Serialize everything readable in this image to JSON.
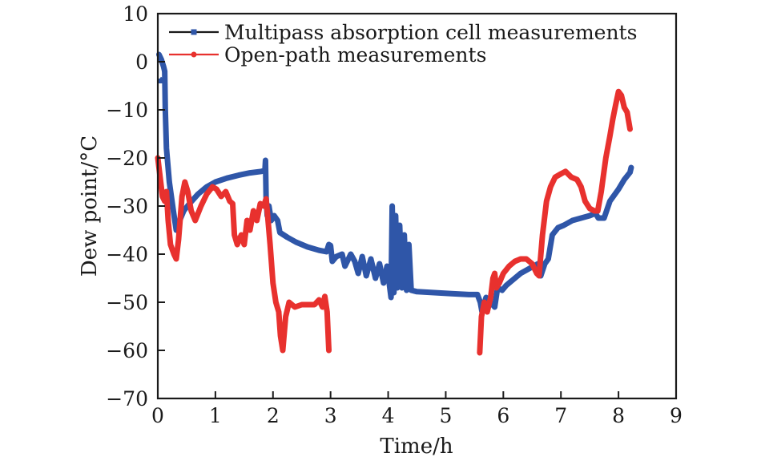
{
  "chart_data": {
    "type": "line",
    "title": "",
    "xlabel": "Time/h",
    "ylabel": "Dew point/°C",
    "xlim": [
      0,
      9
    ],
    "ylim": [
      -70,
      10
    ],
    "xticks": [
      0,
      1,
      2,
      3,
      4,
      5,
      6,
      7,
      8,
      9
    ],
    "yticks": [
      10,
      0,
      -10,
      -20,
      -30,
      -40,
      -50,
      -60,
      -70
    ],
    "xtick_labels": [
      "0",
      "1",
      "2",
      "3",
      "4",
      "5",
      "6",
      "7",
      "8",
      "9"
    ],
    "ytick_labels": [
      "10",
      "0",
      "−10",
      "−20",
      "−30",
      "−40",
      "−50",
      "−60",
      "−70"
    ],
    "grid": false,
    "legend_position": "top-left",
    "series": [
      {
        "name": "Multipass absorption cell measurements",
        "color": "#2f56a8",
        "marker": "square",
        "segments": [
          [
            [
              0.02,
              1.5
            ],
            [
              0.06,
              0.5
            ],
            [
              0.1,
              -1
            ],
            [
              0.12,
              -2
            ]
          ],
          [
            [
              0.12,
              -2
            ],
            [
              0.13,
              -10
            ],
            [
              0.15,
              -18
            ],
            [
              0.2,
              -25
            ],
            [
              0.27,
              -31
            ],
            [
              0.32,
              -35
            ],
            [
              0.38,
              -33
            ],
            [
              0.45,
              -31
            ],
            [
              0.55,
              -29.5
            ],
            [
              0.7,
              -27.5
            ],
            [
              0.85,
              -26
            ],
            [
              1.0,
              -25
            ],
            [
              1.2,
              -24.2
            ],
            [
              1.4,
              -23.6
            ],
            [
              1.6,
              -23.1
            ],
            [
              1.8,
              -22.8
            ],
            [
              1.86,
              -22.6
            ],
            [
              1.87,
              -20.5
            ],
            [
              1.88,
              -28
            ],
            [
              1.9,
              -32
            ],
            [
              1.93,
              -30
            ],
            [
              1.97,
              -33
            ],
            [
              2.02,
              -32
            ],
            [
              2.08,
              -33
            ],
            [
              2.12,
              -35.5
            ],
            [
              2.25,
              -36.5
            ],
            [
              2.4,
              -37.5
            ],
            [
              2.6,
              -38.5
            ],
            [
              2.8,
              -39.2
            ],
            [
              2.93,
              -39.5
            ],
            [
              2.97,
              -38
            ],
            [
              3.0,
              -38.2
            ],
            [
              3.03,
              -41.5
            ],
            [
              3.1,
              -40.5
            ],
            [
              3.2,
              -40
            ],
            [
              3.25,
              -42.5
            ],
            [
              3.35,
              -40
            ],
            [
              3.42,
              -41.5
            ],
            [
              3.48,
              -44
            ],
            [
              3.55,
              -40.5
            ],
            [
              3.62,
              -44.5
            ],
            [
              3.7,
              -41
            ],
            [
              3.78,
              -45
            ],
            [
              3.85,
              -42
            ],
            [
              3.92,
              -46
            ],
            [
              3.98,
              -42.5
            ],
            [
              4.05,
              -49
            ],
            [
              4.07,
              -30
            ],
            [
              4.1,
              -48
            ],
            [
              4.13,
              -32
            ],
            [
              4.16,
              -47
            ],
            [
              4.2,
              -34
            ],
            [
              4.24,
              -47
            ],
            [
              4.28,
              -36
            ],
            [
              4.32,
              -47.5
            ],
            [
              4.36,
              -38
            ],
            [
              4.4,
              -47.5
            ],
            [
              4.5,
              -47.8
            ],
            [
              4.8,
              -48
            ],
            [
              5.1,
              -48.2
            ],
            [
              5.4,
              -48.4
            ],
            [
              5.55,
              -48.4
            ],
            [
              5.6,
              -50
            ],
            [
              5.63,
              -52
            ],
            [
              5.7,
              -49
            ],
            [
              5.78,
              -50
            ],
            [
              5.85,
              -51
            ],
            [
              5.9,
              -47
            ],
            [
              5.98,
              -47.5
            ],
            [
              6.05,
              -46.5
            ],
            [
              6.15,
              -45.5
            ],
            [
              6.3,
              -44
            ],
            [
              6.45,
              -43
            ],
            [
              6.6,
              -42
            ],
            [
              6.65,
              -44.5
            ],
            [
              6.72,
              -42
            ],
            [
              6.78,
              -41
            ],
            [
              6.85,
              -36
            ],
            [
              6.95,
              -34.5
            ],
            [
              7.05,
              -34
            ],
            [
              7.2,
              -33
            ],
            [
              7.35,
              -32.5
            ],
            [
              7.5,
              -32
            ],
            [
              7.6,
              -31.5
            ],
            [
              7.65,
              -32.5
            ],
            [
              7.75,
              -32.5
            ],
            [
              7.85,
              -29
            ],
            [
              8.0,
              -26.5
            ],
            [
              8.1,
              -24.5
            ],
            [
              8.2,
              -23
            ],
            [
              8.22,
              -22
            ]
          ]
        ],
        "dashed_gap": [
          [
            0.04,
            -4
          ],
          [
            0.12,
            -2.5
          ]
        ]
      },
      {
        "name": "Open-path measurements",
        "color": "#e8312e",
        "marker": "circle",
        "segments": [
          [
            [
              0.0,
              -20
            ],
            [
              0.05,
              -25
            ],
            [
              0.08,
              -28
            ],
            [
              0.12,
              -29
            ],
            [
              0.15,
              -27
            ],
            [
              0.18,
              -33
            ],
            [
              0.22,
              -38
            ],
            [
              0.28,
              -40
            ],
            [
              0.32,
              -41
            ],
            [
              0.36,
              -37
            ],
            [
              0.42,
              -28
            ],
            [
              0.47,
              -25
            ],
            [
              0.52,
              -27
            ],
            [
              0.58,
              -31
            ],
            [
              0.65,
              -33
            ],
            [
              0.75,
              -30
            ],
            [
              0.85,
              -27.5
            ],
            [
              0.95,
              -26
            ],
            [
              1.02,
              -26.5
            ],
            [
              1.1,
              -28
            ],
            [
              1.18,
              -27
            ],
            [
              1.25,
              -29
            ],
            [
              1.3,
              -29.5
            ],
            [
              1.33,
              -36
            ],
            [
              1.38,
              -38
            ],
            [
              1.45,
              -36
            ],
            [
              1.5,
              -38
            ],
            [
              1.55,
              -33
            ],
            [
              1.6,
              -35
            ],
            [
              1.66,
              -31
            ],
            [
              1.72,
              -33
            ],
            [
              1.78,
              -29.5
            ],
            [
              1.84,
              -30
            ],
            [
              1.88,
              -28.5
            ],
            [
              1.9,
              -31
            ],
            [
              1.95,
              -38
            ],
            [
              2.0,
              -46
            ],
            [
              2.05,
              -50
            ],
            [
              2.1,
              -52
            ],
            [
              2.13,
              -57
            ],
            [
              2.17,
              -60
            ],
            [
              2.22,
              -53
            ],
            [
              2.28,
              -50
            ],
            [
              2.38,
              -51
            ],
            [
              2.5,
              -50.5
            ],
            [
              2.62,
              -50.5
            ],
            [
              2.72,
              -50.5
            ],
            [
              2.8,
              -49.5
            ],
            [
              2.86,
              -51
            ],
            [
              2.9,
              -48.8
            ],
            [
              2.94,
              -52
            ],
            [
              2.97,
              -60
            ]
          ],
          [
            [
              5.59,
              -60.5
            ],
            [
              5.62,
              -53
            ],
            [
              5.67,
              -50
            ],
            [
              5.72,
              -52
            ],
            [
              5.78,
              -49
            ],
            [
              5.82,
              -45
            ],
            [
              5.85,
              -44
            ],
            [
              5.88,
              -47
            ],
            [
              5.93,
              -46
            ],
            [
              6.0,
              -44
            ],
            [
              6.1,
              -42.5
            ],
            [
              6.2,
              -41.5
            ],
            [
              6.3,
              -41
            ],
            [
              6.4,
              -41
            ],
            [
              6.5,
              -42
            ],
            [
              6.58,
              -44
            ],
            [
              6.62,
              -44.5
            ],
            [
              6.68,
              -36
            ],
            [
              6.75,
              -29
            ],
            [
              6.82,
              -26
            ],
            [
              6.9,
              -24
            ],
            [
              7.0,
              -23.3
            ],
            [
              7.08,
              -22.8
            ],
            [
              7.18,
              -24
            ],
            [
              7.28,
              -24.5
            ],
            [
              7.35,
              -26
            ],
            [
              7.42,
              -29
            ],
            [
              7.5,
              -30.5
            ],
            [
              7.58,
              -31
            ],
            [
              7.64,
              -31
            ],
            [
              7.7,
              -27
            ],
            [
              7.78,
              -20
            ],
            [
              7.85,
              -15.5
            ],
            [
              7.9,
              -12
            ],
            [
              7.95,
              -9
            ],
            [
              8.0,
              -6.2
            ],
            [
              8.05,
              -7
            ],
            [
              8.1,
              -9.5
            ],
            [
              8.15,
              -10.5
            ],
            [
              8.2,
              -14
            ]
          ]
        ]
      }
    ]
  }
}
